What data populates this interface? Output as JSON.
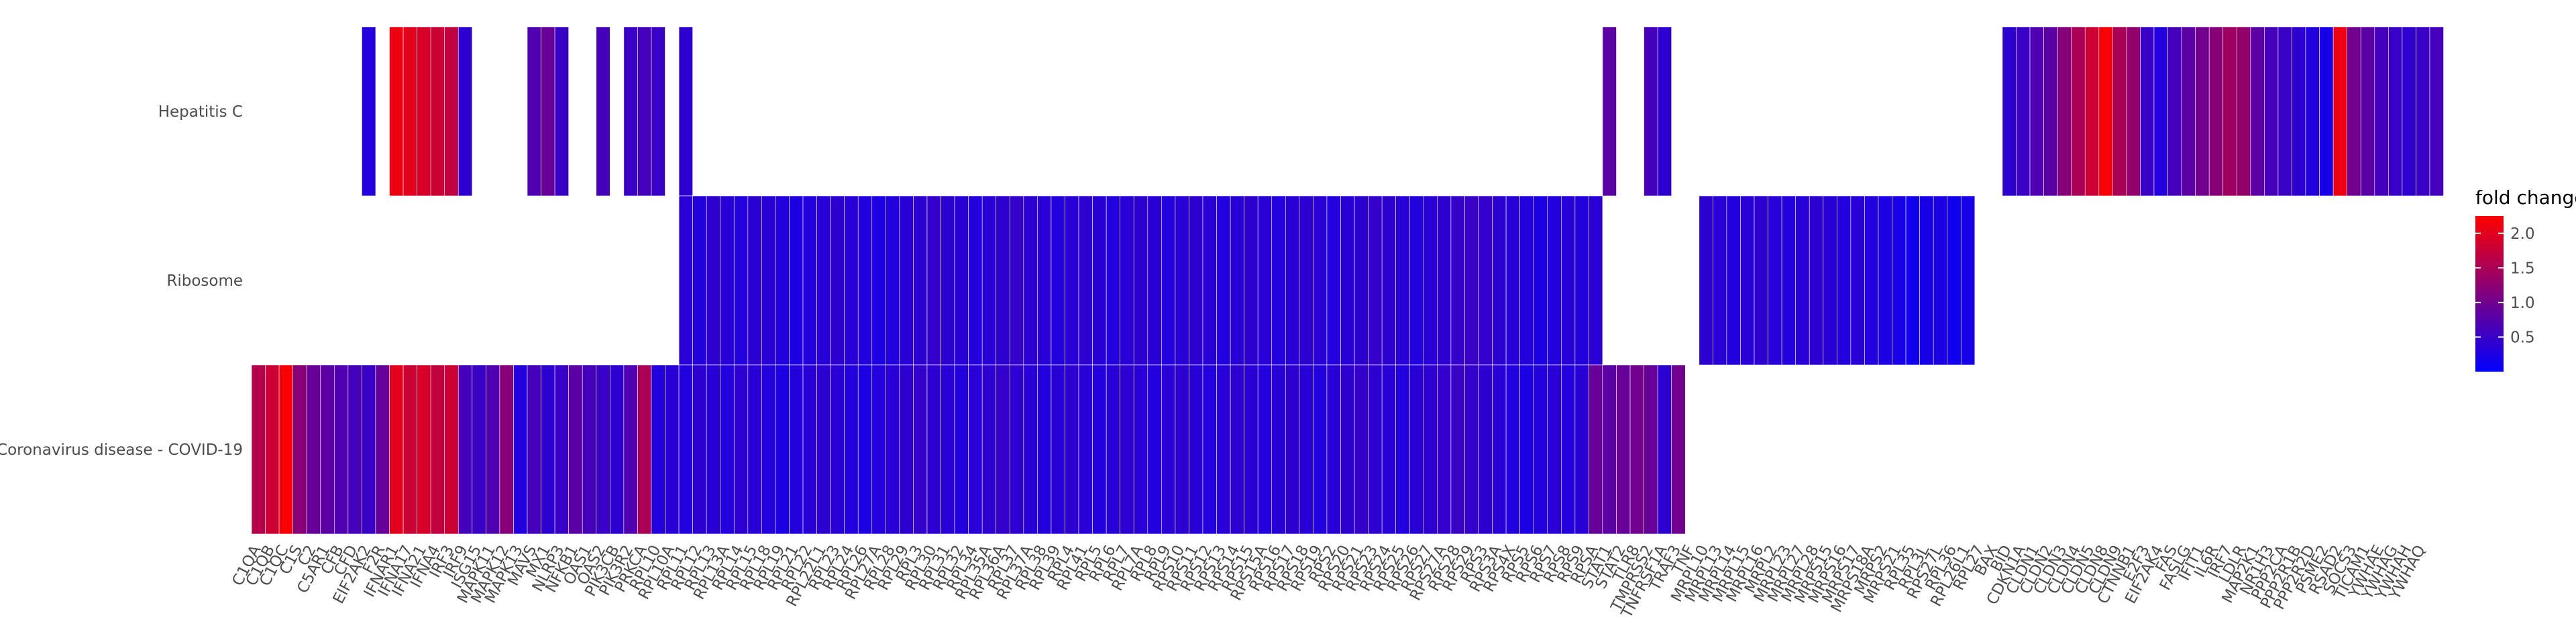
{
  "chart_data": {
    "type": "heatmap",
    "title": "",
    "xlabel": "",
    "ylabel": "",
    "rows": [
      "Hepatitis C",
      "Ribosome",
      "Coronavirus disease - COVID-19"
    ],
    "genes": [
      "C1QA",
      "C1QB",
      "C1QC",
      "C1S",
      "C2",
      "C5AR1",
      "CFB",
      "CFD",
      "EIF2AK2",
      "F2R",
      "IFNAR1",
      "IFNA17",
      "IFNA21",
      "IFNA4",
      "IRF3",
      "IRF9",
      "ISG15",
      "MAPK11",
      "MAPK12",
      "MAPK13",
      "MAVS",
      "MX1",
      "NLRP3",
      "NFKB1",
      "OAS1",
      "OAS2",
      "PIK3CB",
      "PIK3R2",
      "PRKCA",
      "RPL10",
      "RPL10A",
      "RPL11",
      "RPL12",
      "RPL13",
      "RPL13A",
      "RPL14",
      "RPL15",
      "RPL18",
      "RPL19",
      "RPL21",
      "RPL22",
      "RPL22L1",
      "RPL23",
      "RPL24",
      "RPL26",
      "RPL27A",
      "RPL28",
      "RPL29",
      "RPL3",
      "RPL30",
      "RPL31",
      "RPL32",
      "RPL34",
      "RPL35A",
      "RPL36A",
      "RPL37",
      "RPL37A",
      "RPL38",
      "RPL39",
      "RPL4",
      "RPL41",
      "RPL5",
      "RPL6",
      "RPL7",
      "RPL7A",
      "RPL8",
      "RPL9",
      "RPS10",
      "RPS11",
      "RPS12",
      "RPS13",
      "RPS14",
      "RPS15",
      "RPS15A",
      "RPS16",
      "RPS17",
      "RPS18",
      "RPS19",
      "RPS2",
      "RPS20",
      "RPS21",
      "RPS23",
      "RPS24",
      "RPS25",
      "RPS26",
      "RPS27",
      "RPS27A",
      "RPS28",
      "RPS29",
      "RPS3",
      "RPS3A",
      "RPS4X",
      "RPS5",
      "RPS6",
      "RPS7",
      "RPS8",
      "RPS9",
      "RPSA",
      "STAT1",
      "STAT2",
      "TLR8",
      "TMPRSS2",
      "TNFRSF1A",
      "TRAF3",
      "TNF",
      "MRPL10",
      "MRPL13",
      "MRPL14",
      "MRPL15",
      "MRPL16",
      "MRPL2",
      "MRPL23",
      "MRPL27",
      "MRPL28",
      "MRPS15",
      "MRPS16",
      "MRPS17",
      "MRPS18A",
      "MRPS2",
      "MRPS21",
      "RPL35",
      "RPL3L",
      "RPS27L",
      "RPL36",
      "RPL26L1",
      "RPL27",
      "BAX",
      "BID",
      "CDKN1A",
      "CLDN1",
      "CLDN2",
      "CLDN3",
      "CLDN4",
      "CLDN5",
      "CLDN8",
      "CLDN9",
      "CTNNB1",
      "E2F3",
      "EIF2AK4",
      "FAS",
      "FASLG",
      "IFIT1",
      "IL6R",
      "IRF7",
      "LDLR",
      "MAP2K1",
      "NR1H3",
      "PPP2CA",
      "PPP2R1B",
      "PPP2R2D",
      "PSME2",
      "RSAD2",
      "SOCS3",
      "TICAM1",
      "YWHAE",
      "YWHAG",
      "YWHAH",
      "YWHAQ"
    ],
    "values": {
      "Hepatitis C": [
        null,
        null,
        null,
        null,
        null,
        null,
        null,
        null,
        0.3,
        null,
        2.1,
        2.0,
        1.9,
        1.8,
        1.7,
        0.4,
        null,
        null,
        null,
        null,
        0.7,
        0.9,
        0.5,
        null,
        null,
        0.6,
        null,
        0.5,
        0.6,
        0.5,
        null,
        0.4,
        null,
        null,
        null,
        null,
        null,
        null,
        null,
        null,
        null,
        null,
        null,
        null,
        null,
        null,
        null,
        null,
        null,
        null,
        null,
        null,
        null,
        null,
        null,
        null,
        null,
        null,
        null,
        null,
        null,
        null,
        null,
        null,
        null,
        null,
        null,
        null,
        null,
        null,
        null,
        null,
        null,
        null,
        null,
        null,
        null,
        null,
        null,
        null,
        null,
        null,
        null,
        null,
        null,
        null,
        null,
        null,
        null,
        null,
        null,
        null,
        null,
        null,
        null,
        null,
        null,
        null,
        0.8,
        null,
        null,
        0.6,
        0.4,
        null,
        null,
        null,
        null,
        null,
        null,
        null,
        null,
        null,
        null,
        null,
        null,
        null,
        null,
        null,
        null,
        null,
        null,
        null,
        null,
        null,
        null,
        null,
        null,
        0.4,
        0.5,
        0.7,
        0.8,
        1.2,
        1.5,
        1.8,
        2.2,
        1.5,
        1.3,
        0.5,
        0.3,
        0.6,
        0.8,
        1.0,
        1.2,
        1.4,
        1.3,
        0.8,
        0.6,
        0.5,
        0.4,
        0.3,
        0.2,
        2.1,
        1.0,
        0.8,
        0.6,
        0.5,
        0.4,
        0.5,
        0.6
      ],
      "Ribosome": [
        null,
        null,
        null,
        null,
        null,
        null,
        null,
        null,
        null,
        null,
        null,
        null,
        null,
        null,
        null,
        null,
        null,
        null,
        null,
        null,
        null,
        null,
        null,
        null,
        null,
        null,
        null,
        null,
        null,
        null,
        null,
        0.35,
        0.3,
        0.4,
        0.35,
        0.3,
        0.4,
        0.35,
        0.3,
        0.25,
        0.3,
        0.35,
        0.4,
        0.35,
        0.3,
        0.25,
        0.3,
        0.35,
        0.4,
        0.45,
        0.4,
        0.35,
        0.3,
        0.35,
        0.4,
        0.45,
        0.4,
        0.35,
        0.3,
        0.35,
        0.4,
        0.35,
        0.3,
        0.35,
        0.4,
        0.35,
        0.3,
        0.35,
        0.4,
        0.35,
        0.3,
        0.35,
        0.4,
        0.35,
        0.3,
        0.35,
        0.4,
        0.35,
        0.3,
        0.35,
        0.4,
        0.45,
        0.4,
        0.35,
        0.3,
        0.35,
        0.4,
        0.45,
        0.5,
        0.45,
        0.4,
        0.35,
        0.3,
        0.25,
        0.3,
        0.35,
        0.3,
        0.35,
        null,
        null,
        null,
        null,
        null,
        null,
        null,
        0.4,
        0.35,
        0.3,
        0.35,
        0.4,
        0.35,
        0.3,
        0.35,
        0.4,
        0.35,
        0.3,
        0.35,
        0.3,
        0.25,
        0.2,
        0.15,
        0.2,
        0.25,
        0.15,
        0.2,
        null,
        null,
        null,
        null,
        null,
        null,
        null,
        null,
        null,
        null,
        null,
        null,
        null,
        null,
        null,
        null,
        null,
        null,
        null,
        null,
        null,
        null,
        null,
        null,
        null,
        null,
        null,
        null,
        null,
        null,
        null,
        null,
        null
      ],
      "Coronavirus disease - COVID-19": [
        1.6,
        1.8,
        2.2,
        1.2,
        0.9,
        0.8,
        0.7,
        0.6,
        0.5,
        0.9,
        2.0,
        1.8,
        1.9,
        1.7,
        1.8,
        0.6,
        0.5,
        0.7,
        1.2,
        0.3,
        0.6,
        0.4,
        0.5,
        0.8,
        0.6,
        0.5,
        0.4,
        0.7,
        1.5,
        0.3,
        0.35,
        0.3,
        0.4,
        0.35,
        0.3,
        0.4,
        0.35,
        0.3,
        0.25,
        0.3,
        0.35,
        0.4,
        0.35,
        0.3,
        0.25,
        0.3,
        0.35,
        0.4,
        0.45,
        0.4,
        0.35,
        0.3,
        0.35,
        0.4,
        0.45,
        0.4,
        0.35,
        0.3,
        0.35,
        0.4,
        0.35,
        0.3,
        0.35,
        0.4,
        0.35,
        0.3,
        0.35,
        0.4,
        0.35,
        0.3,
        0.35,
        0.4,
        0.35,
        0.3,
        0.35,
        0.4,
        0.35,
        0.3,
        0.35,
        0.4,
        0.45,
        0.4,
        0.35,
        0.3,
        0.35,
        0.4,
        0.45,
        0.5,
        0.45,
        0.4,
        0.35,
        0.3,
        0.25,
        0.3,
        0.35,
        0.3,
        0.35,
        0.9,
        0.8,
        0.9,
        1.0,
        0.9,
        0.4,
        1.0,
        null,
        null,
        null,
        null,
        null,
        null,
        null,
        null,
        null,
        null,
        null,
        null,
        null,
        null,
        null,
        null,
        null,
        null,
        null,
        null,
        null,
        null,
        null,
        null,
        null,
        null,
        null,
        null,
        null,
        null,
        null,
        null,
        null,
        null,
        null,
        null,
        null,
        null,
        null,
        null,
        null,
        null,
        null,
        null,
        null,
        null,
        null,
        null,
        null,
        null,
        null,
        null,
        null,
        null,
        null,
        null
      ]
    },
    "legend": {
      "title": "fold change",
      "ticks": [
        2.0,
        1.5,
        1.0,
        0.5
      ],
      "tick_labels": [
        "2.0",
        "1.5",
        "1.0",
        "0.5"
      ],
      "range": [
        0.0,
        2.25
      ],
      "placement": "right",
      "colors": {
        "low": "#0000ff",
        "high": "#ff0000"
      }
    },
    "grid": false
  }
}
